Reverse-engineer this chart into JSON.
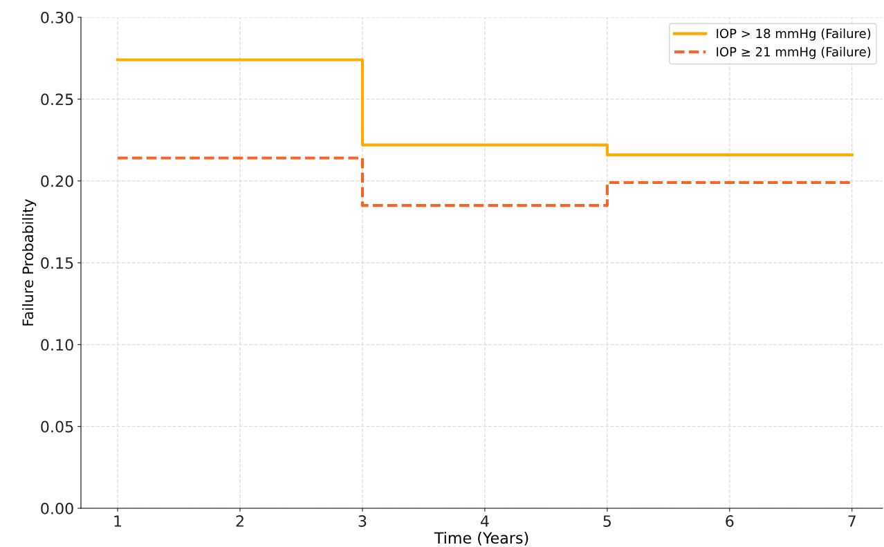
{
  "chart_data": {
    "type": "step",
    "xlabel": "Time (Years)",
    "ylabel": "Failure Probability",
    "x": [
      1,
      3,
      5,
      7
    ],
    "series": [
      {
        "name": "IOP > 18 mmHg (Failure)",
        "color": "#ffaa00",
        "line_style": "solid",
        "values": [
          0.274,
          0.222,
          0.216,
          0.216
        ]
      },
      {
        "name": "IOP ≥ 21 mmHg (Failure)",
        "color": "#f4652a",
        "line_style": "dashed",
        "values": [
          0.214,
          0.185,
          0.199,
          0.199
        ]
      }
    ],
    "xlim": [
      0.7,
      7.25
    ],
    "xticks": [
      1,
      2,
      3,
      4,
      5,
      6,
      7
    ],
    "ylim": [
      0,
      0.3
    ],
    "yticks": [
      {
        "value": 0,
        "label": "0.00"
      },
      {
        "value": 0.05,
        "label": "0.05"
      },
      {
        "value": 0.1,
        "label": "0.10"
      },
      {
        "value": 0.15,
        "label": "0.15"
      },
      {
        "value": 0.2,
        "label": "0.20"
      },
      {
        "value": 0.25,
        "label": "0.25"
      },
      {
        "value": 0.3,
        "label": "0.30"
      }
    ],
    "grid": true,
    "legend": "top right"
  }
}
